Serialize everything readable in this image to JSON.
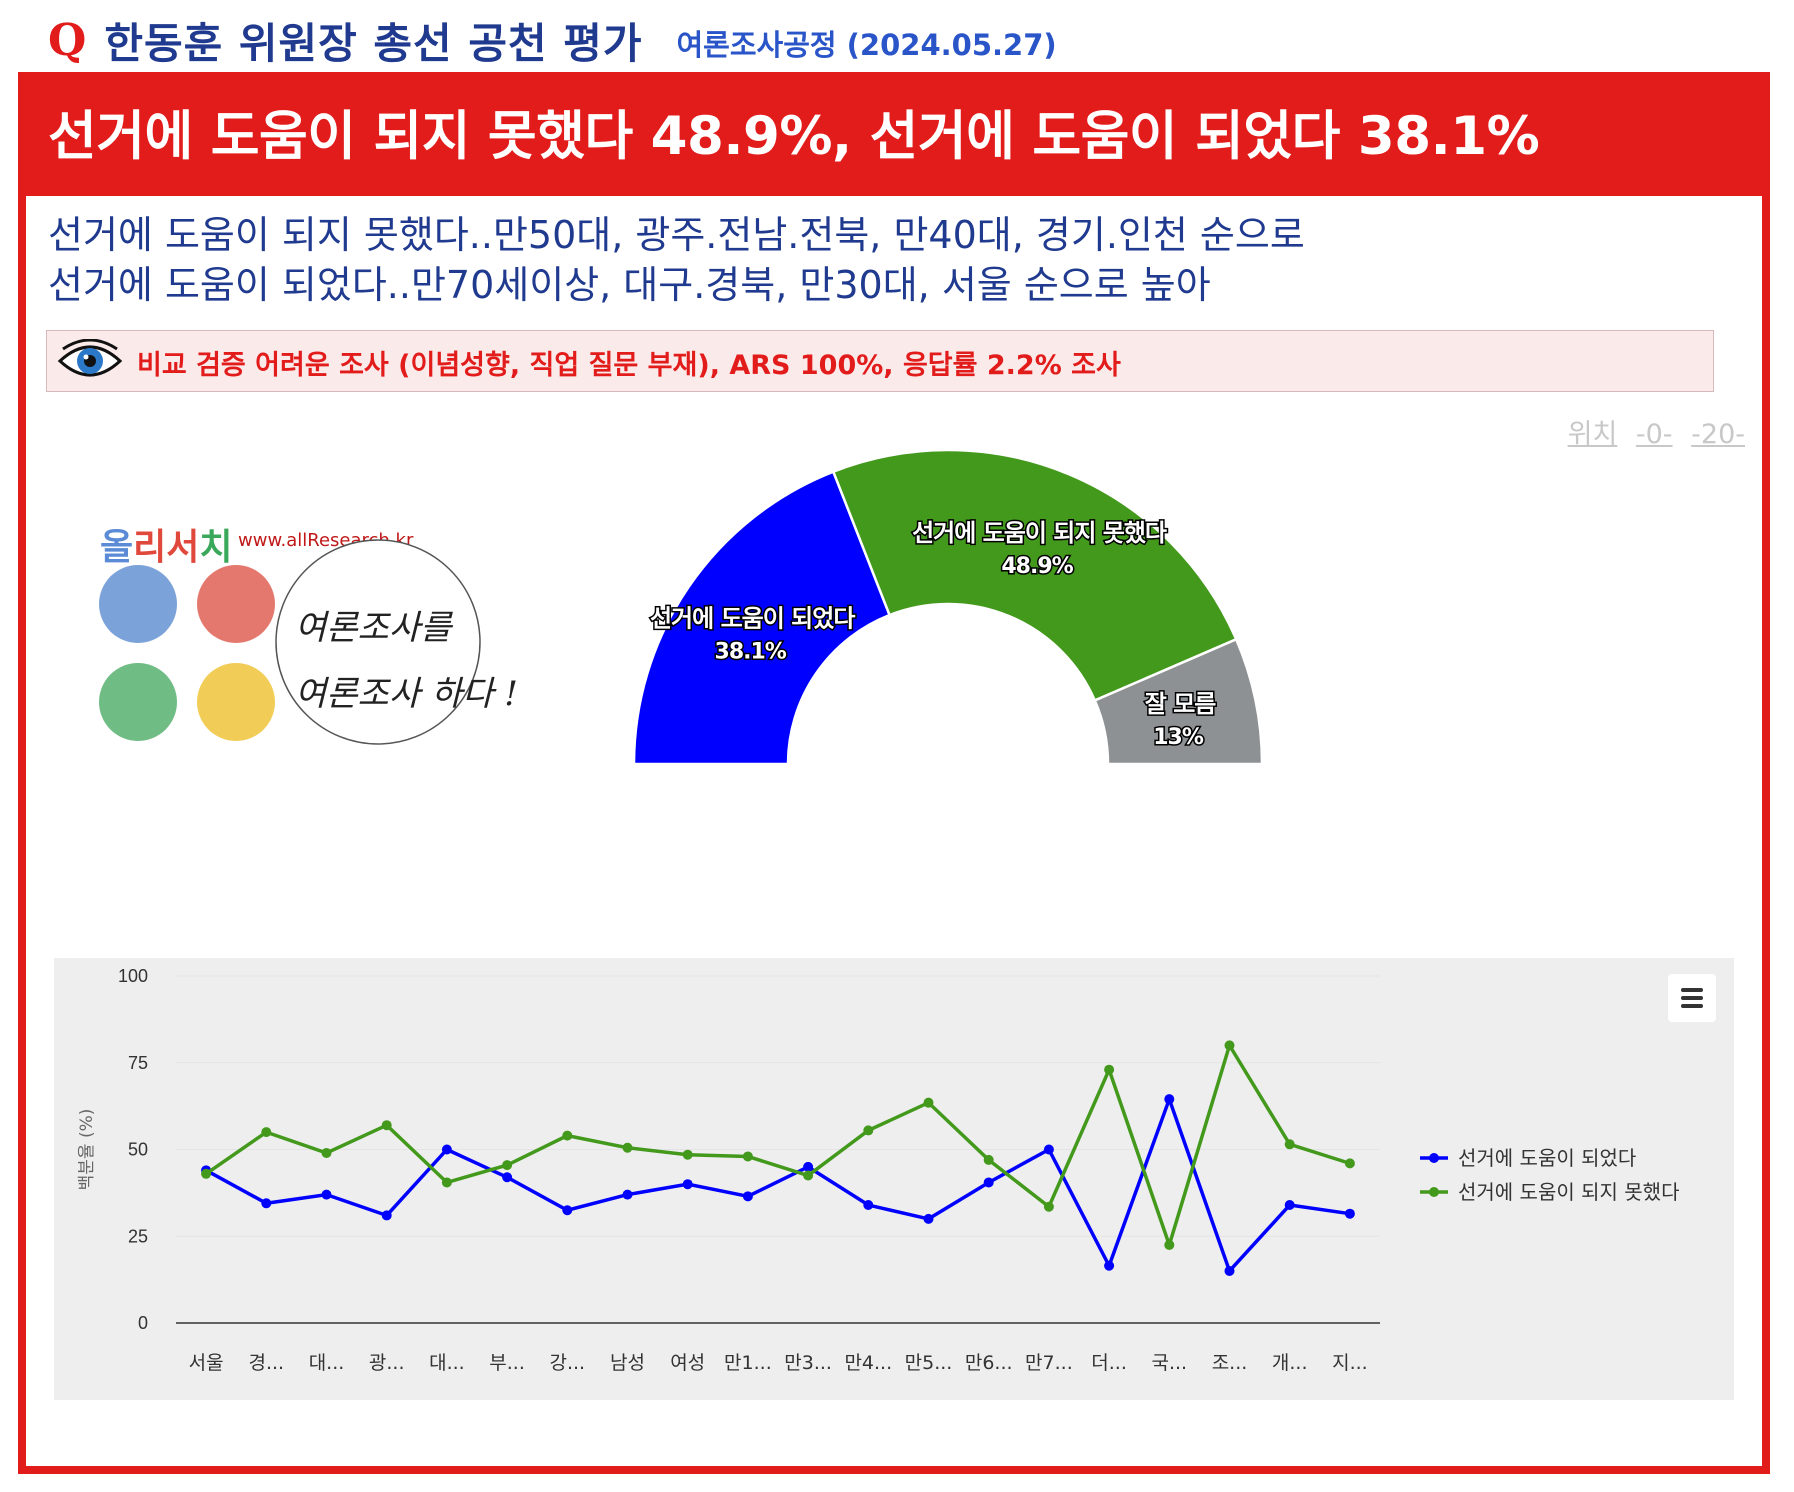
{
  "header": {
    "q_mark": "Q",
    "title": "한동훈 위원장 총선 공천 평가",
    "subtitle": "여론조사공정 (2024.05.27)"
  },
  "banner": {
    "headline": "선거에 도움이 되지 못했다 48.9%, 선거에 도움이 되었다 38.1%"
  },
  "description": {
    "line1": "선거에 도움이 되지 못했다..만50대, 광주.전남.전북, 만40대, 경기.인천 순으로",
    "line2": "선거에 도움이 되었다..만70세이상, 대구.경북, 만30대, 서울 순으로 높아"
  },
  "note": {
    "text": "비교 검증 어려운 조사 (이념성향, 직업 질문 부재), ARS 100%, 응답률 2.2% 조사",
    "icon": "eye-icon"
  },
  "position_links": {
    "label": "위치",
    "links": [
      "-0-",
      "-20-"
    ]
  },
  "logo": {
    "name_chars": [
      "올",
      "리",
      "서",
      "치"
    ],
    "name_colors": [
      "#5b8bd6",
      "#e0483c",
      "#e0483c",
      "#3aa85a"
    ],
    "url": "www.allResearch.kr",
    "slogan1": "여론조사를",
    "slogan2": "여론조사 하다 !",
    "dot_colors": [
      "#7ba3d9",
      "#e5786e",
      "#6fbd85",
      "#f1cd58"
    ]
  },
  "chart_data": [
    {
      "type": "pie",
      "variant": "semicircle-donut",
      "slices": [
        {
          "label": "선거에 도움이 되었다",
          "value": 38.1,
          "value_label": "38.1%",
          "color": "#0000ff"
        },
        {
          "label": "선거에 도움이 되지 못했다",
          "value": 48.9,
          "value_label": "48.9%",
          "color": "#43991c"
        },
        {
          "label": "잘 모름",
          "value": 13,
          "value_label": "13%",
          "color": "#8e9194"
        }
      ]
    },
    {
      "type": "line",
      "categories": [
        "서울",
        "경...",
        "대...",
        "광...",
        "대...",
        "부...",
        "강...",
        "남성",
        "여성",
        "만1...",
        "만3...",
        "만4...",
        "만5...",
        "만6...",
        "만7...",
        "더...",
        "국...",
        "조...",
        "개...",
        "지..."
      ],
      "ylabel": "백분율 (%)",
      "ylim": [
        0,
        100
      ],
      "yticks": [
        0,
        25,
        50,
        75,
        100
      ],
      "grid": true,
      "legend": "right",
      "series": [
        {
          "name": "선거에 도움이 되었다",
          "color": "#0000ff",
          "values": [
            44,
            34.5,
            37,
            31,
            50,
            42,
            32.5,
            37,
            40,
            36.5,
            45,
            34,
            30,
            40.5,
            50,
            16.5,
            64.5,
            15,
            34,
            31.5
          ]
        },
        {
          "name": "선거에 도움이 되지 못했다",
          "color": "#43991c",
          "values": [
            43,
            55,
            49,
            57,
            40.5,
            45.5,
            54,
            50.5,
            48.5,
            48,
            42.5,
            55.5,
            63.5,
            47,
            33.5,
            73,
            22.5,
            80,
            51.5,
            46
          ]
        }
      ],
      "menu_icon": "hamburger-menu-icon"
    }
  ]
}
